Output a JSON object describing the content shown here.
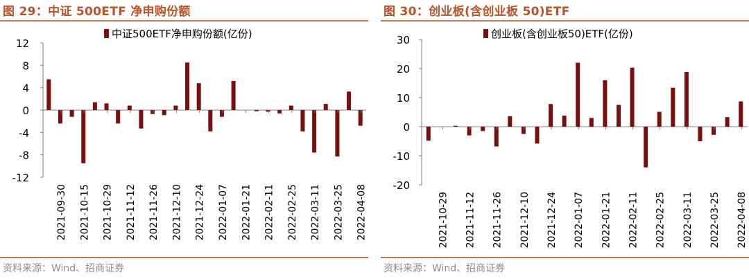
{
  "panels": [
    {
      "figure_title": "图 29：中证 500ETF 净申购份额",
      "source": "资料来源：Wind、招商证券"
    },
    {
      "figure_title": "图 30：创业板(含创业板 50)ETF",
      "source": "资料来源：Wind、招商证券"
    }
  ],
  "colors": {
    "bar": "#7b0f0f",
    "title": "#b8532a",
    "rule": "#c9734a",
    "axis": "#7f7f7f",
    "text": "#000000"
  },
  "chart_data": [
    {
      "type": "bar",
      "title": "中证 500ETF 净申购份额",
      "legend": "中证500ETF净申购份额(亿份)",
      "legend_position": "top-center",
      "xlabel": "",
      "ylabel": "",
      "ylim": [
        -12,
        12
      ],
      "yticks": [
        -12,
        -8,
        -4,
        0,
        4,
        8,
        12
      ],
      "xtick_labels": [
        "2021-09-30",
        "2021-10-15",
        "2021-10-29",
        "2021-11-12",
        "2021-11-26",
        "2021-12-10",
        "2021-12-24",
        "2022-01-07",
        "2022-01-21",
        "2022-02-11",
        "2022-02-25",
        "2022-03-11",
        "2022-03-25",
        "2022-04-08"
      ],
      "values": [
        5.5,
        -2.4,
        -1.2,
        -9.5,
        1.4,
        1.2,
        -2.4,
        0.8,
        -3.3,
        -0.7,
        -0.9,
        0.8,
        8.5,
        4.8,
        -3.8,
        -1.2,
        5.2,
        0,
        -0.2,
        -0.3,
        -0.6,
        0.8,
        -3.8,
        -7.6,
        1.1,
        -8.3,
        3.3,
        -2.8
      ]
    },
    {
      "type": "bar",
      "title": "创业板(含创业板 50)ETF",
      "legend": "创业板(含创业板50)ETF(亿份)",
      "legend_position": "top-center",
      "xlabel": "",
      "ylabel": "",
      "ylim": [
        -20,
        30
      ],
      "yticks": [
        -20,
        -10,
        0,
        10,
        20,
        30
      ],
      "xtick_labels": [
        "2021-10-29",
        "2021-11-12",
        "2021-11-26",
        "2021-12-10",
        "2021-12-24",
        "2022-01-07",
        "2022-01-21",
        "2022-02-11",
        "2022-02-25",
        "2022-03-11",
        "2022-03-25",
        "2022-04-08"
      ],
      "values": [
        -4.8,
        0,
        0.3,
        -3.0,
        -1.5,
        -6.8,
        3.6,
        -2.5,
        -5.8,
        7.8,
        3.8,
        22.0,
        3.0,
        16.0,
        7.5,
        20.3,
        -14.0,
        5.1,
        13.4,
        18.8,
        -5.0,
        -2.8,
        3.3,
        8.7
      ]
    }
  ]
}
